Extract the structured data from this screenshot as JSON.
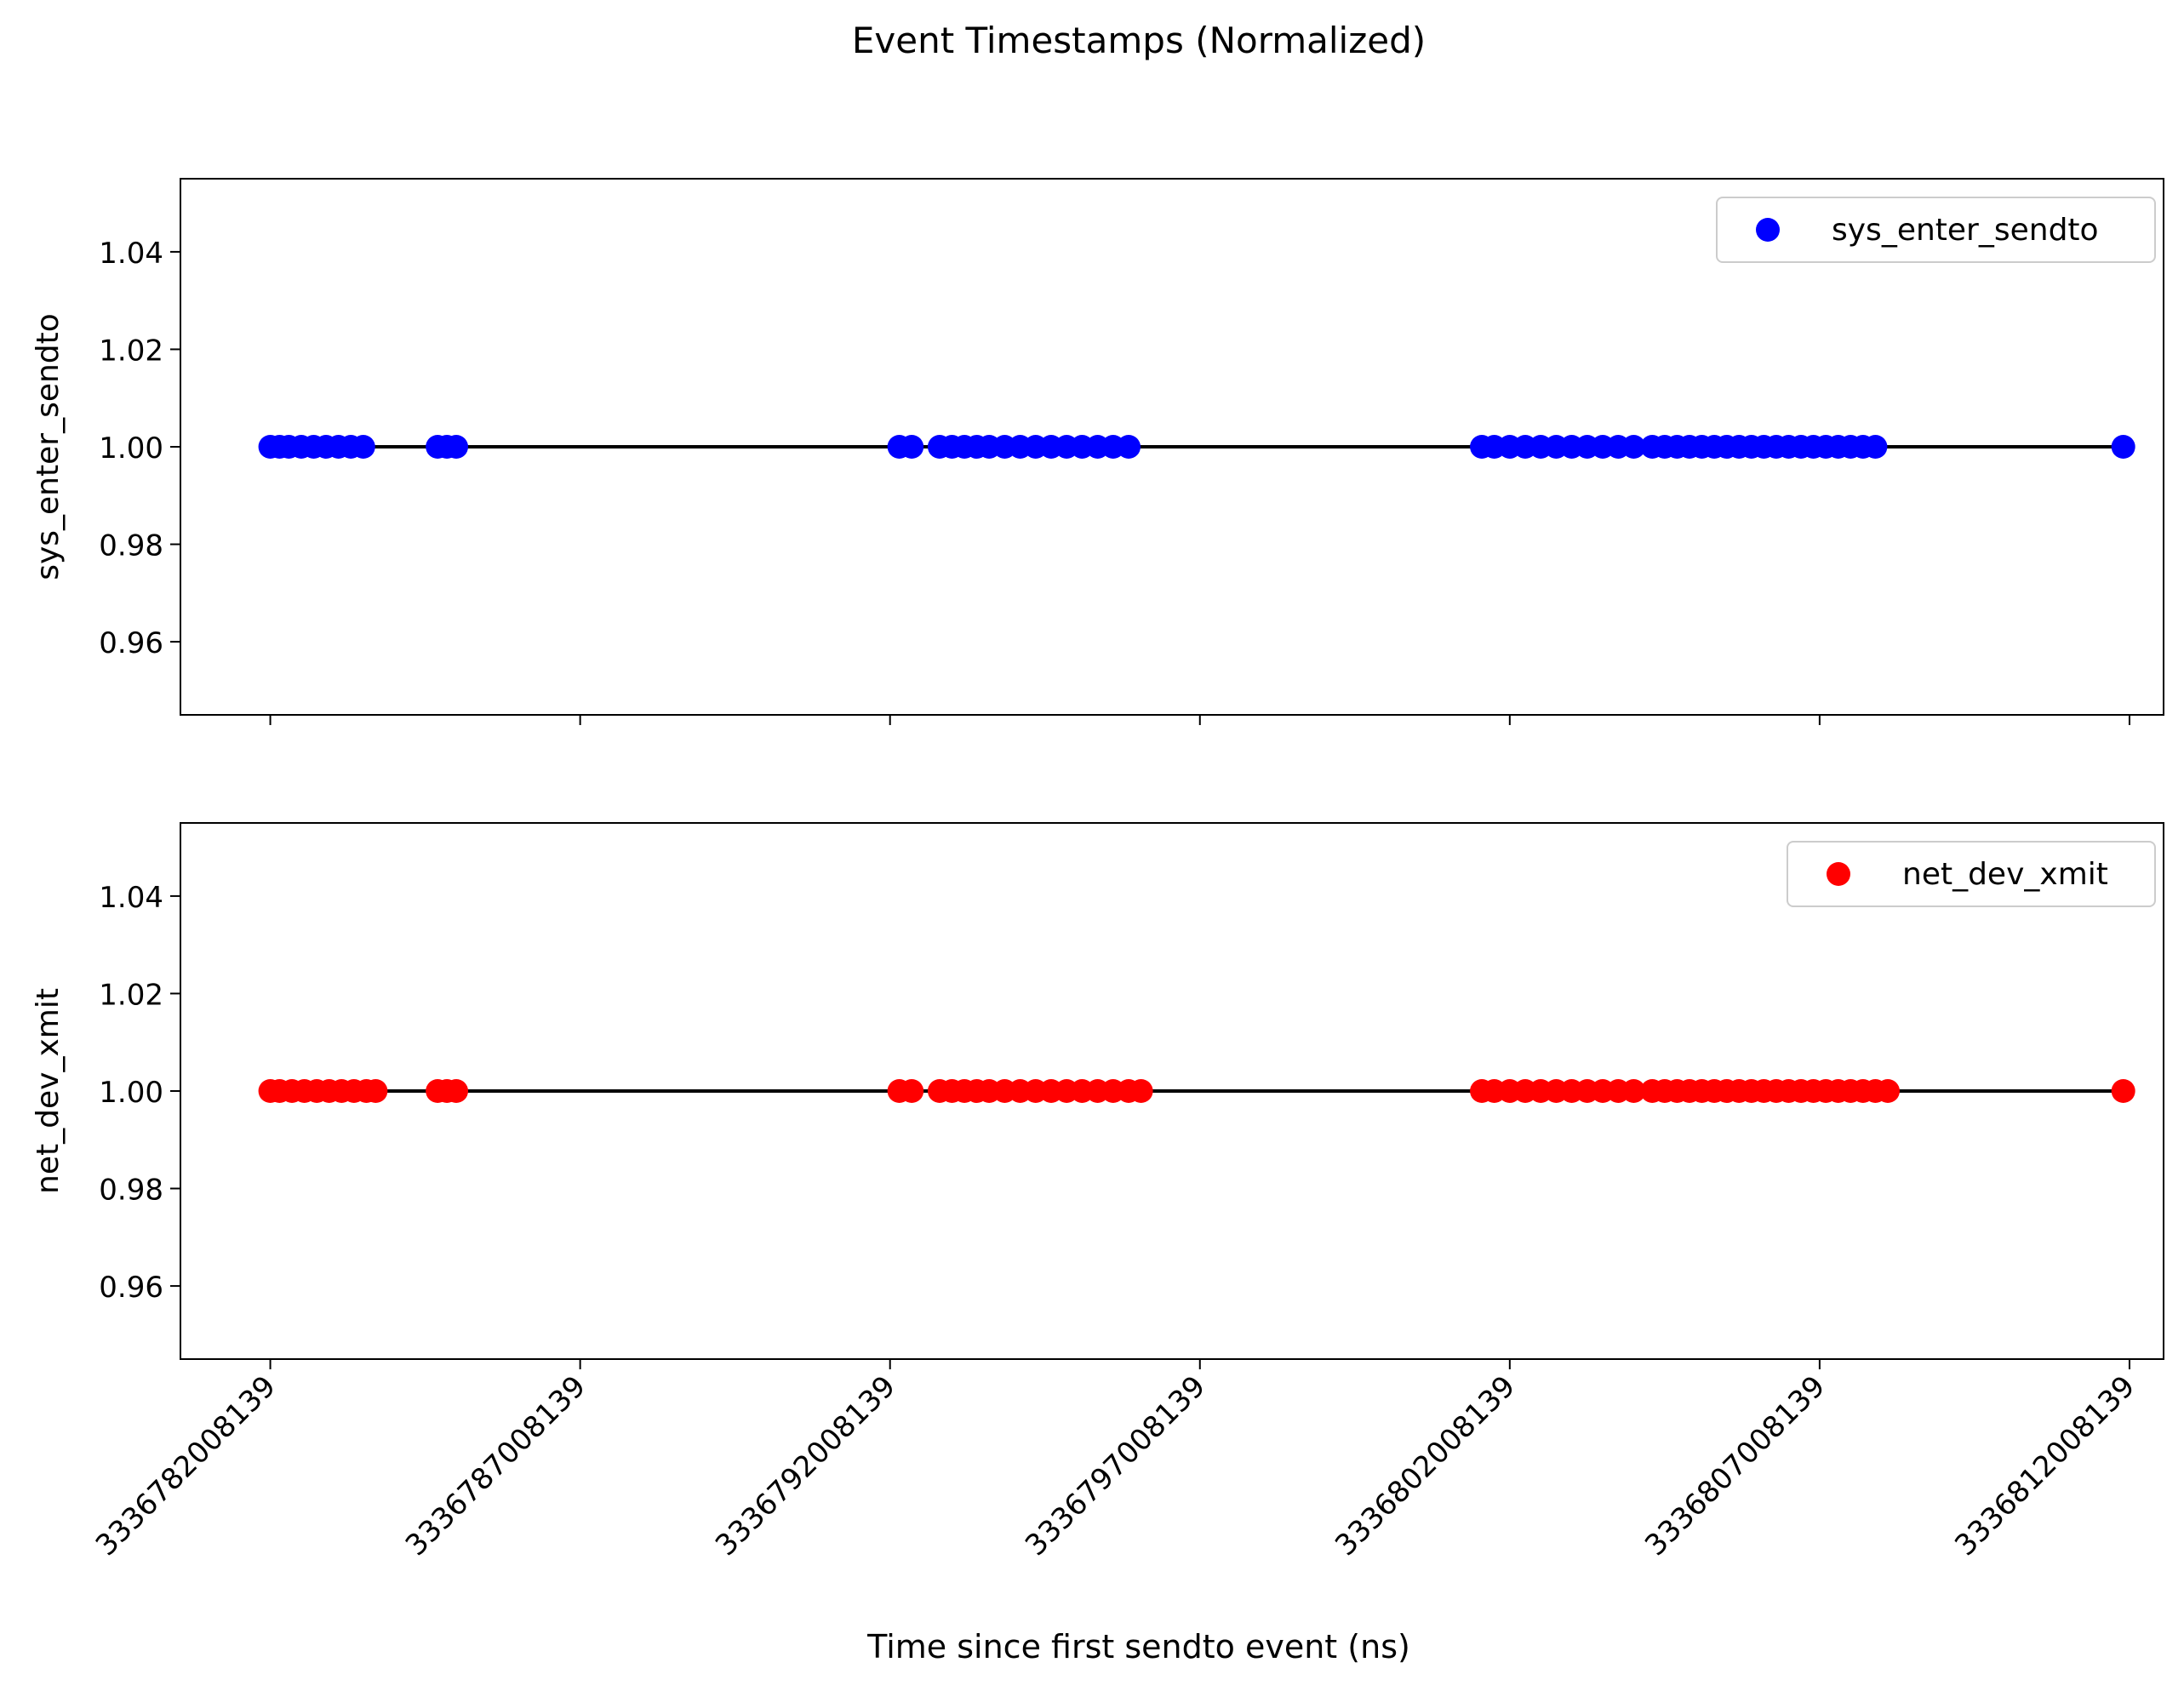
{
  "figure": {
    "title": "Event Timestamps (Normalized)"
  },
  "chart_data": [
    {
      "type": "scatter",
      "ylabel": "sys_enter_sendto",
      "xlabel": "",
      "xlim": [
        3336780558139,
        3336812558139
      ],
      "ylim": [
        0.945,
        1.055
      ],
      "yticks": [
        0.96,
        0.98,
        1.0,
        1.02,
        1.04
      ],
      "ytick_labels": [
        "0.96",
        "0.98",
        "1.00",
        "1.02",
        "1.04"
      ],
      "xticks": [
        3336782008139,
        3336787008139,
        3336792008139,
        3336797008139,
        3336802008139,
        3336807008139,
        3336812008139
      ],
      "xtick_labels_shown": false,
      "grid": false,
      "legend": "top-right",
      "color": "#0000ff",
      "series": [
        {
          "name": "sys_enter_sendto",
          "y": 1.0,
          "x": [
            3336782008139,
            3336782158139,
            3336782308139,
            3336782508139,
            3336782708139,
            3336782908139,
            3336783108139,
            3336783308139,
            3336783508139,
            3336784708139,
            3336784858139,
            3336785008139,
            3336792158139,
            3336792358139,
            3336792808139,
            3336793008139,
            3336793208139,
            3336793408139,
            3336793608139,
            3336793858139,
            3336794108139,
            3336794358139,
            3336794608139,
            3336794858139,
            3336795108139,
            3336795358139,
            3336795608139,
            3336795858139,
            3336801558139,
            3336801758139,
            3336802008139,
            3336802258139,
            3336802508139,
            3336802758139,
            3336803008139,
            3336803258139,
            3336803508139,
            3336803758139,
            3336804008139,
            3336804308139,
            3336804508139,
            3336804708139,
            3336804908139,
            3336805108139,
            3336805308139,
            3336805508139,
            3336805708139,
            3336805908139,
            3336806108139,
            3336806308139,
            3336806508139,
            3336806708139,
            3336806908139,
            3336807108139,
            3336807308139,
            3336807508139,
            3336807708139,
            3336807908139,
            3336811908139
          ]
        }
      ]
    },
    {
      "type": "scatter",
      "ylabel": "net_dev_xmit",
      "xlabel": "Time since first sendto event (ns)",
      "xlim": [
        3336780558139,
        3336812558139
      ],
      "ylim": [
        0.945,
        1.055
      ],
      "yticks": [
        0.96,
        0.98,
        1.0,
        1.02,
        1.04
      ],
      "ytick_labels": [
        "0.96",
        "0.98",
        "1.00",
        "1.02",
        "1.04"
      ],
      "xticks": [
        3336782008139,
        3336787008139,
        3336792008139,
        3336797008139,
        3336802008139,
        3336807008139,
        3336812008139
      ],
      "xtick_labels": [
        "3336782008139",
        "3336787008139",
        "3336792008139",
        "3336797008139",
        "3336802008139",
        "3336807008139",
        "3336812008139"
      ],
      "xtick_labels_shown": true,
      "grid": false,
      "legend": "top-right",
      "color": "#ff0000",
      "series": [
        {
          "name": "net_dev_xmit",
          "y": 1.0,
          "x": [
            3336782008139,
            3336782158139,
            3336782358139,
            3336782558139,
            3336782758139,
            3336782958139,
            3336783158139,
            3336783358139,
            3336783558139,
            3336783708139,
            3336784708139,
            3336784858139,
            3336785008139,
            3336792158139,
            3336792358139,
            3336792808139,
            3336793008139,
            3336793208139,
            3336793408139,
            3336793608139,
            3336793858139,
            3336794108139,
            3336794358139,
            3336794608139,
            3336794858139,
            3336795108139,
            3336795358139,
            3336795608139,
            3336795858139,
            3336796058139,
            3336801558139,
            3336801758139,
            3336802008139,
            3336802258139,
            3336802508139,
            3336802758139,
            3336803008139,
            3336803258139,
            3336803508139,
            3336803758139,
            3336804008139,
            3336804308139,
            3336804508139,
            3336804708139,
            3336804908139,
            3336805108139,
            3336805308139,
            3336805508139,
            3336805708139,
            3336805908139,
            3336806108139,
            3336806308139,
            3336806508139,
            3336806708139,
            3336806908139,
            3336807108139,
            3336807308139,
            3336807508139,
            3336807708139,
            3336807908139,
            3336808108139,
            3336811908139
          ]
        }
      ]
    }
  ]
}
